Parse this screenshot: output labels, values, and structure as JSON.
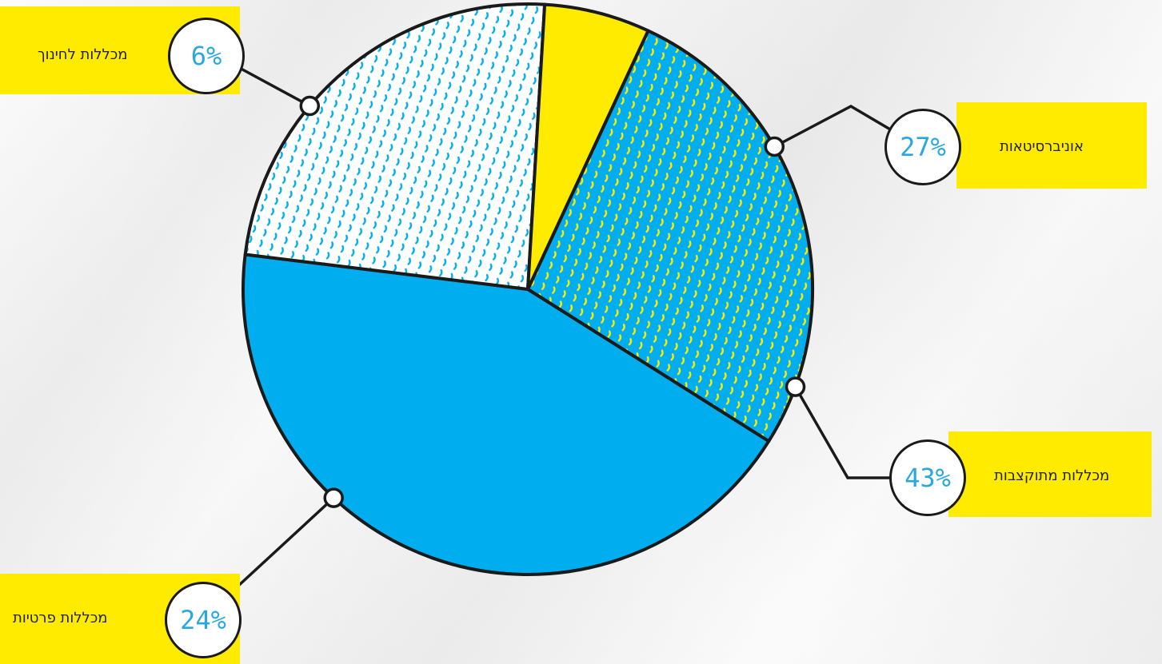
{
  "chart_data": {
    "type": "pie",
    "slices": [
      {
        "label": "אוניברסיטאות",
        "value": 27,
        "value_label": "27%",
        "fill": "pattern-yellow-on-blue"
      },
      {
        "label": "מכללות מתוקצבות",
        "value": 43,
        "value_label": "43%",
        "fill": "solid-blue"
      },
      {
        "label": "מכללות פרטיות",
        "value": 24,
        "value_label": "24%",
        "fill": "pattern-blue-on-white"
      },
      {
        "label": "מכללות לחינוך",
        "value": 6,
        "value_label": "6%",
        "fill": "solid-yellow"
      }
    ],
    "legend": "none"
  },
  "colors": {
    "blue": "#00aeef",
    "yellow": "#ffeb00",
    "outline": "#1a1a1a",
    "percent_text": "#29a8e0"
  }
}
